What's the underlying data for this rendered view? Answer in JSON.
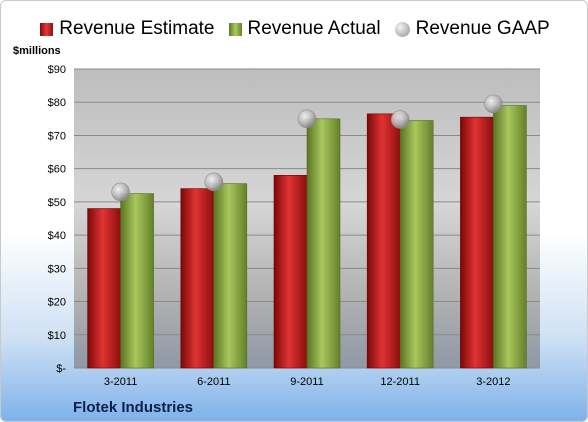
{
  "chart_data": {
    "type": "bar",
    "categories": [
      "3-2011",
      "6-2011",
      "9-2011",
      "12-2011",
      "3-2012"
    ],
    "series": [
      {
        "name": "Revenue Estimate",
        "kind": "bar",
        "color": "#c0181a",
        "values": [
          48,
          54,
          58,
          76.5,
          75.5
        ]
      },
      {
        "name": "Revenue Actual",
        "kind": "bar",
        "color": "#8cab45",
        "values": [
          52.5,
          55.5,
          75,
          74.5,
          79
        ]
      },
      {
        "name": "Revenue GAAP",
        "kind": "marker",
        "color": "#b5b5b5",
        "values": [
          53,
          56,
          75,
          74.8,
          79.5
        ]
      }
    ],
    "ylabel": "$millions",
    "ylim": [
      0,
      90
    ],
    "yticks": [
      0,
      10,
      20,
      30,
      40,
      50,
      60,
      70,
      80,
      90
    ],
    "ytick_labels": [
      "$-",
      "$10",
      "$20",
      "$30",
      "$40",
      "$50",
      "$60",
      "$70",
      "$80",
      "$90"
    ],
    "legend_position": "top",
    "grid": true,
    "footer": "Flotek Industries"
  }
}
